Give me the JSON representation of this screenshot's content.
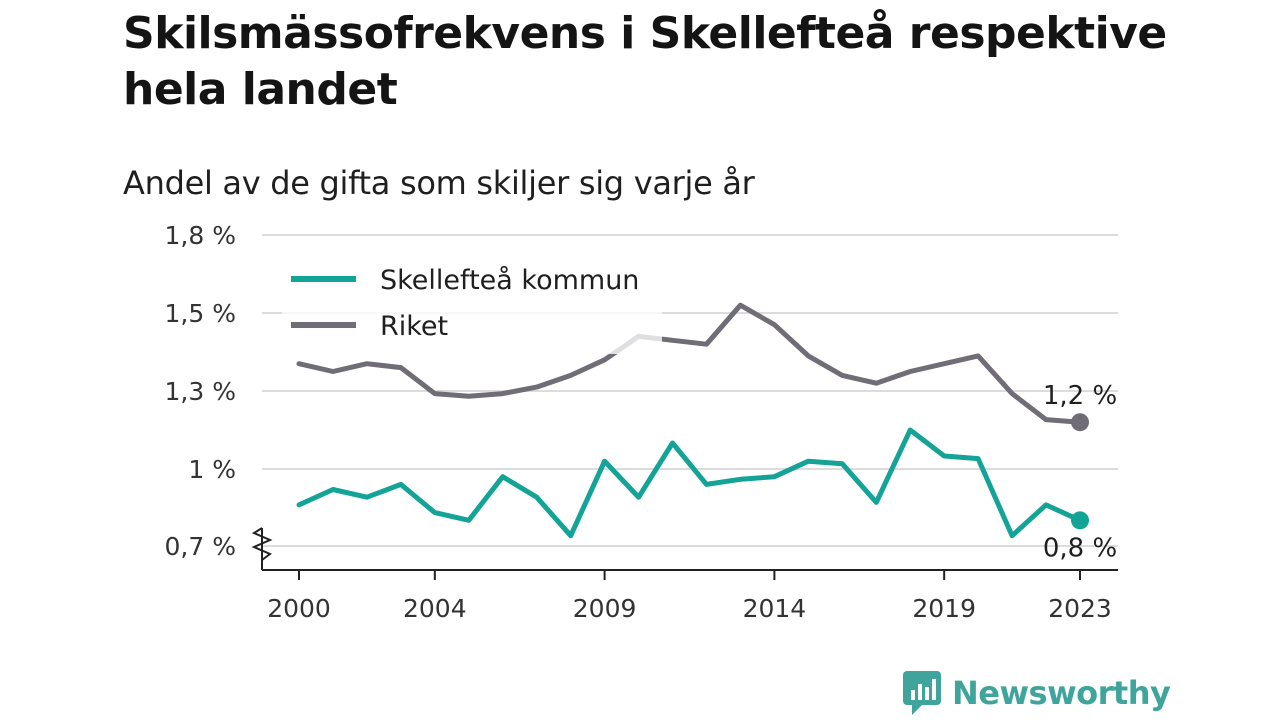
{
  "title": "Skilsmässofrekvens i Skellefteå respektive hela landet",
  "subtitle": "Andel av de gifta som skiljer sig varje år",
  "brand": {
    "name": "Newsworthy",
    "color": "#3fa59c"
  },
  "chart_data": {
    "type": "line",
    "ylim": [
      0.7,
      1.8
    ],
    "y_ticks": [
      {
        "value": 0.7,
        "label": "0,7 %"
      },
      {
        "value": 1.0,
        "label": "1 %"
      },
      {
        "value": 1.3,
        "label": "1,3 %"
      },
      {
        "value": 1.5,
        "label": "1,5 %"
      },
      {
        "value": 1.8,
        "label": "1,8 %"
      }
    ],
    "y_axis_break": true,
    "x_ticks": [
      2000,
      2004,
      2009,
      2014,
      2019,
      2023
    ],
    "x_tick_labels": [
      "2000",
      "2004",
      "2009",
      "2014",
      "2019",
      "2023"
    ],
    "grid": true,
    "legend_position": "top-left",
    "x": [
      2000,
      2001,
      2002,
      2003,
      2004,
      2005,
      2006,
      2007,
      2008,
      2009,
      2010,
      2011,
      2012,
      2013,
      2014,
      2015,
      2016,
      2017,
      2018,
      2019,
      2020,
      2021,
      2022,
      2023
    ],
    "series": [
      {
        "name": "Skellefteå kommun",
        "color": "#13a397",
        "end_label": "0,8 %",
        "values": [
          0.86,
          0.92,
          0.89,
          0.94,
          0.83,
          0.8,
          0.97,
          0.89,
          0.74,
          1.03,
          0.89,
          1.1,
          0.94,
          0.96,
          0.97,
          1.03,
          1.02,
          0.87,
          1.15,
          1.05,
          1.04,
          0.74,
          0.86,
          0.8
        ]
      },
      {
        "name": "Riket",
        "color": "#706d76",
        "end_label": "1,2 %",
        "values": [
          1.37,
          1.35,
          1.37,
          1.36,
          1.29,
          1.28,
          1.29,
          1.31,
          1.34,
          1.38,
          1.44,
          1.43,
          1.42,
          1.53,
          1.47,
          1.39,
          1.34,
          1.32,
          1.35,
          1.37,
          1.39,
          1.29,
          1.19,
          1.18
        ]
      }
    ]
  }
}
